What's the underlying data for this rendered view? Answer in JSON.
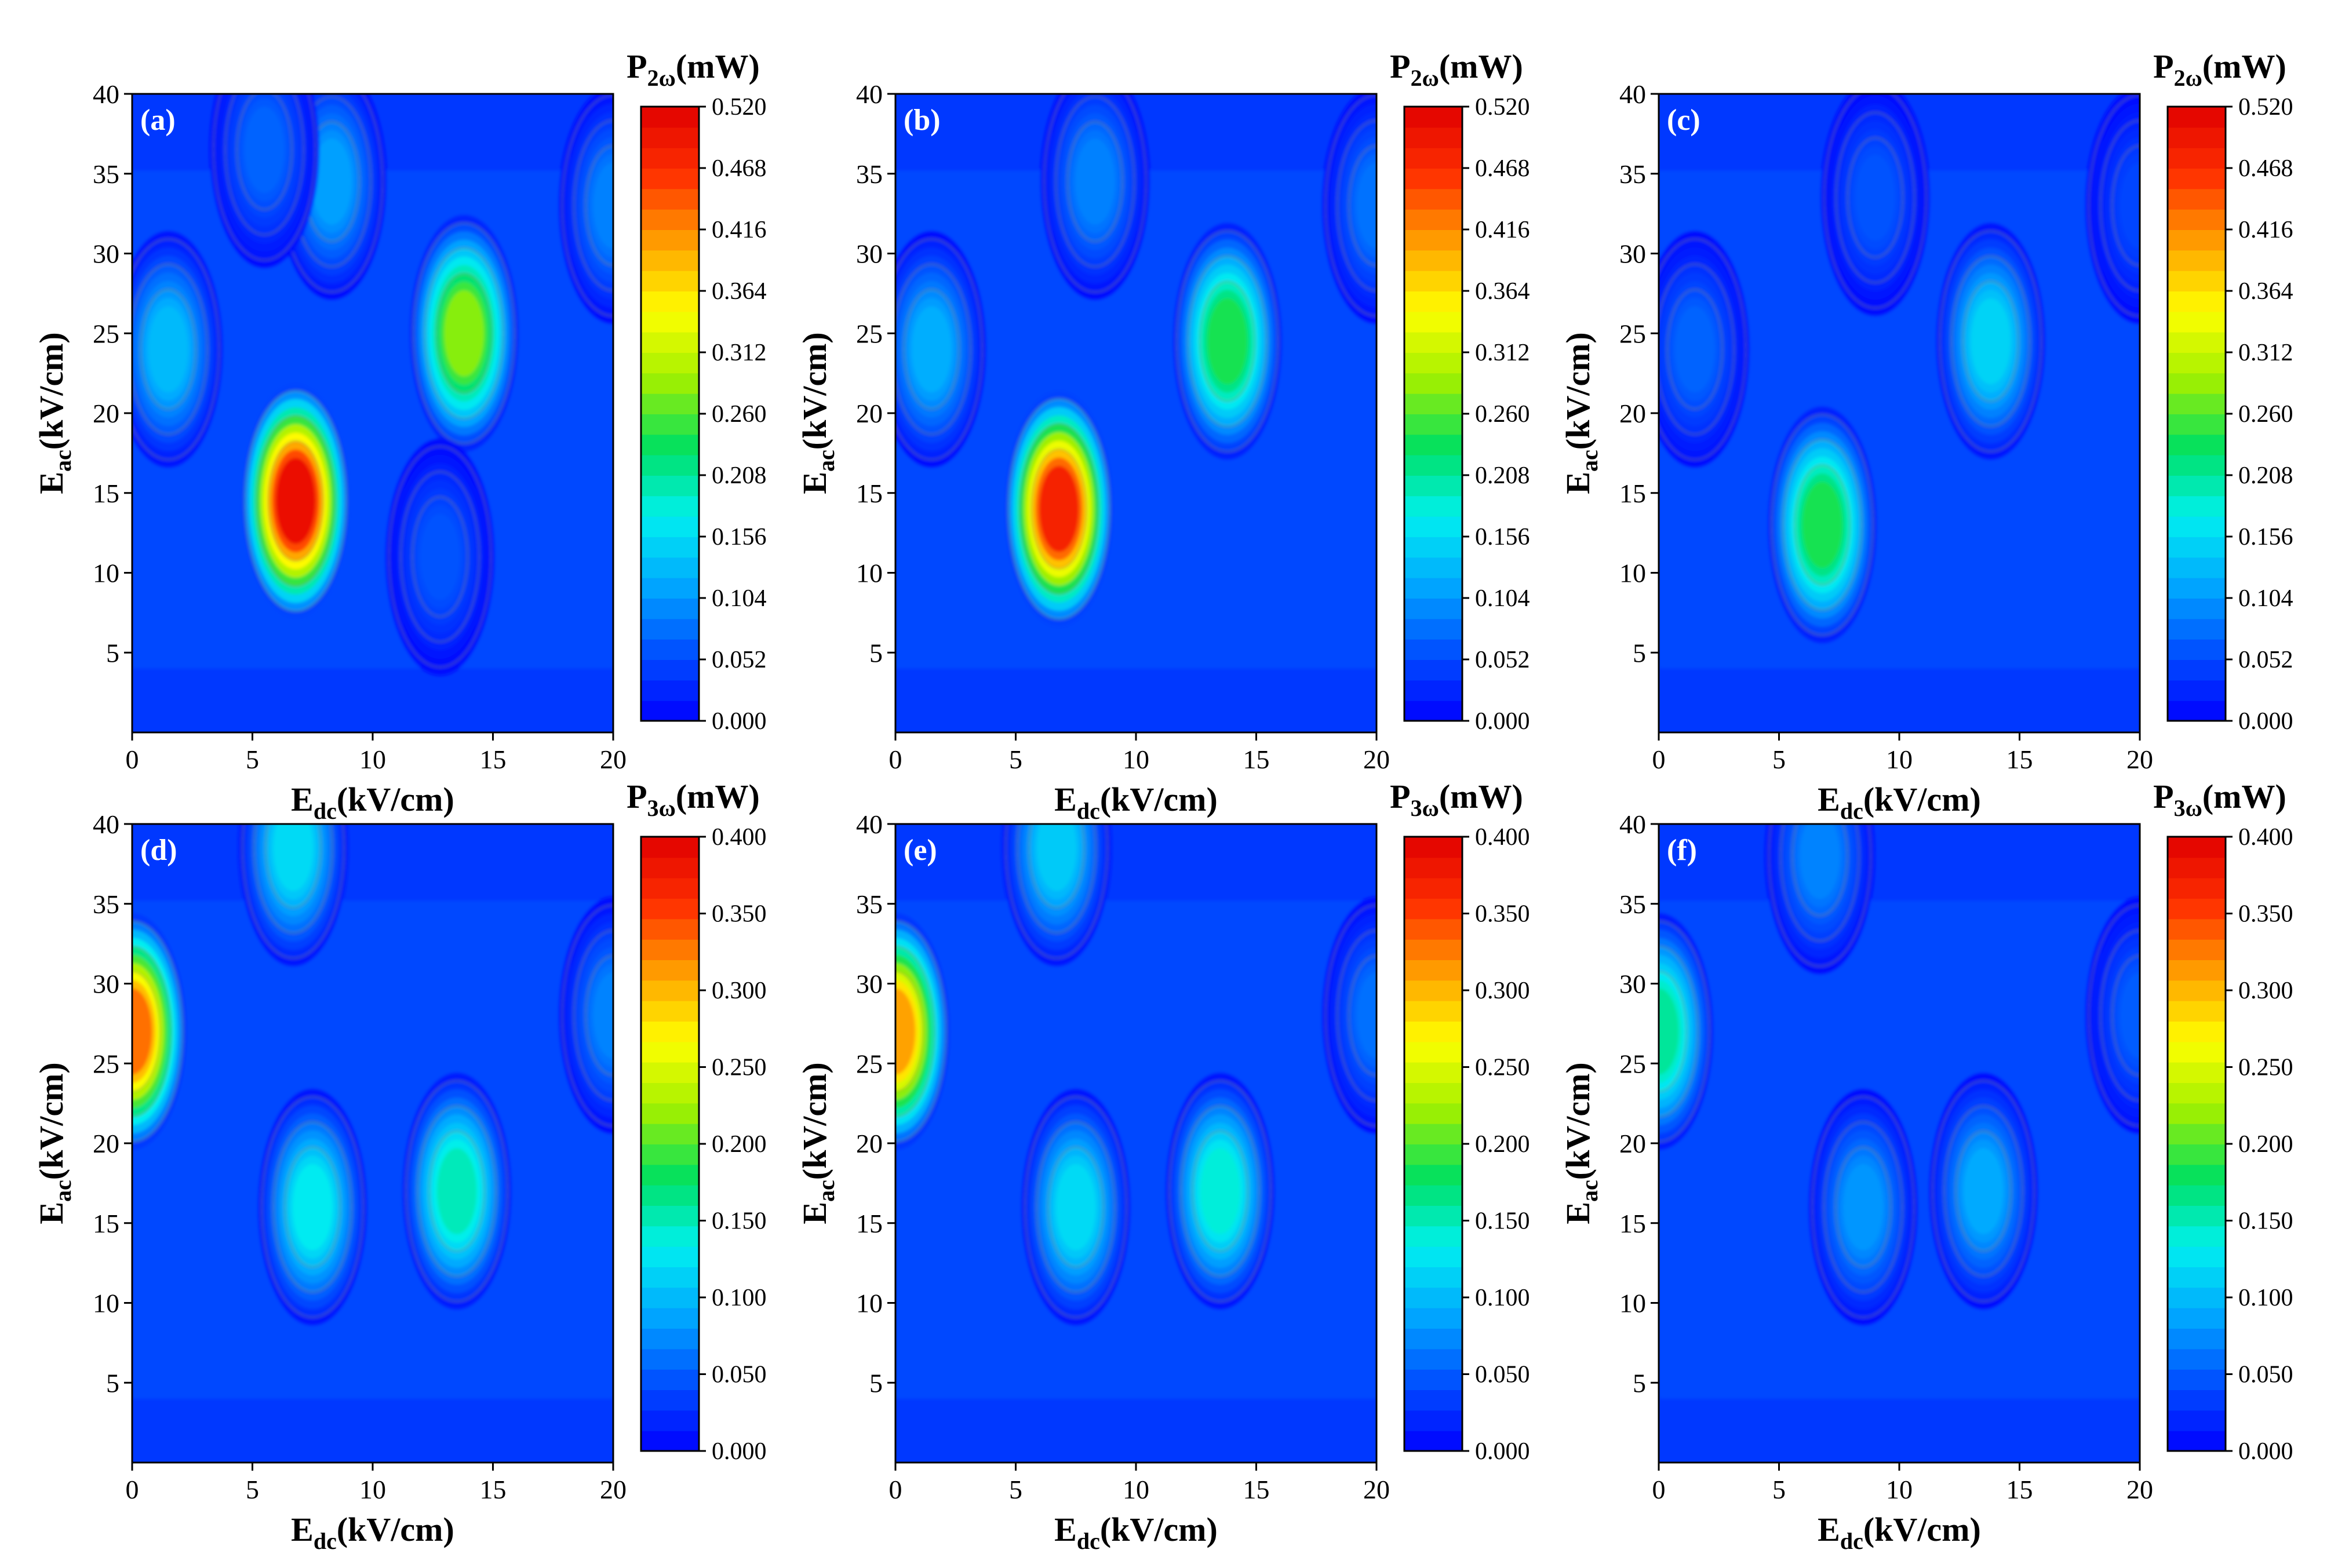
{
  "figure": {
    "description_axes": "6 contour maps (2 rows x 3 columns)",
    "colormap_stops": [
      "#0000ff",
      "#0050ff",
      "#00a8ff",
      "#00f0f0",
      "#00e060",
      "#a0f000",
      "#ffff00",
      "#ffa000",
      "#ff3000",
      "#e00000"
    ]
  },
  "chart_data": [
    {
      "type": "heatmap",
      "panel_label": "(a)",
      "xlabel_main": "E",
      "xlabel_sub": "dc",
      "xlabel_unit": "(kV/cm)",
      "ylabel_main": "E",
      "ylabel_sub": "ac",
      "ylabel_unit": "(kV/cm)",
      "xlim": [
        0,
        20
      ],
      "ylim": [
        0,
        40
      ],
      "xticks": [
        "0",
        "5",
        "10",
        "15",
        "20"
      ],
      "yticks": [
        "5",
        "10",
        "15",
        "20",
        "25",
        "30",
        "35",
        "40"
      ],
      "colorbar": {
        "title_main": "P",
        "title_sub": "2ω",
        "title_unit": "(mW)",
        "range": [
          0,
          0.52
        ],
        "ticks": [
          "0.000",
          "0.052",
          "0.104",
          "0.156",
          "0.208",
          "0.260",
          "0.312",
          "0.364",
          "0.416",
          "0.468",
          "0.520"
        ]
      },
      "peaks": [
        {
          "x": 6.8,
          "y": 14.5,
          "value": 0.5
        },
        {
          "x": 13.8,
          "y": 25.0,
          "value": 0.28
        },
        {
          "x": 1.5,
          "y": 24.0,
          "value": 0.13
        },
        {
          "x": 8.3,
          "y": 34.5,
          "value": 0.11
        },
        {
          "x": 5.5,
          "y": 36.5,
          "value": 0.07
        },
        {
          "x": 20.0,
          "y": 33.0,
          "value": 0.09
        },
        {
          "x": 12.8,
          "y": 11.0,
          "value": 0.06
        }
      ]
    },
    {
      "type": "heatmap",
      "panel_label": "(b)",
      "xlabel_main": "E",
      "xlabel_sub": "dc",
      "xlabel_unit": "(kV/cm)",
      "ylabel_main": "E",
      "ylabel_sub": "ac",
      "ylabel_unit": "(kV/cm)",
      "xlim": [
        0,
        20
      ],
      "ylim": [
        0,
        40
      ],
      "xticks": [
        "0",
        "5",
        "10",
        "15",
        "20"
      ],
      "yticks": [
        "5",
        "10",
        "15",
        "20",
        "25",
        "30",
        "35",
        "40"
      ],
      "colorbar": {
        "title_main": "P",
        "title_sub": "2ω",
        "title_unit": "(mW)",
        "range": [
          0,
          0.52
        ],
        "ticks": [
          "0.000",
          "0.052",
          "0.104",
          "0.156",
          "0.208",
          "0.260",
          "0.312",
          "0.364",
          "0.416",
          "0.468",
          "0.520"
        ]
      },
      "peaks": [
        {
          "x": 6.8,
          "y": 14.0,
          "value": 0.48
        },
        {
          "x": 13.8,
          "y": 24.5,
          "value": 0.24
        },
        {
          "x": 1.5,
          "y": 24.0,
          "value": 0.12
        },
        {
          "x": 8.3,
          "y": 34.5,
          "value": 0.09
        },
        {
          "x": 20.0,
          "y": 33.0,
          "value": 0.08
        }
      ]
    },
    {
      "type": "heatmap",
      "panel_label": "(c)",
      "xlabel_main": "E",
      "xlabel_sub": "dc",
      "xlabel_unit": "(kV/cm)",
      "ylabel_main": "E",
      "ylabel_sub": "ac",
      "ylabel_unit": "(kV/cm)",
      "xlim": [
        0,
        20
      ],
      "ylim": [
        0,
        40
      ],
      "xticks": [
        "0",
        "5",
        "10",
        "15",
        "20"
      ],
      "yticks": [
        "5",
        "10",
        "15",
        "20",
        "25",
        "30",
        "35",
        "40"
      ],
      "colorbar": {
        "title_main": "P",
        "title_sub": "2ω",
        "title_unit": "(mW)",
        "range": [
          0,
          0.52
        ],
        "ticks": [
          "0.000",
          "0.052",
          "0.104",
          "0.156",
          "0.208",
          "0.260",
          "0.312",
          "0.364",
          "0.416",
          "0.468",
          "0.520"
        ]
      },
      "peaks": [
        {
          "x": 6.8,
          "y": 13.0,
          "value": 0.24
        },
        {
          "x": 13.8,
          "y": 24.5,
          "value": 0.15
        },
        {
          "x": 1.5,
          "y": 24.0,
          "value": 0.07
        },
        {
          "x": 9.0,
          "y": 33.5,
          "value": 0.06
        },
        {
          "x": 20.0,
          "y": 33.0,
          "value": 0.05
        }
      ]
    },
    {
      "type": "heatmap",
      "panel_label": "(d)",
      "xlabel_main": "E",
      "xlabel_sub": "dc",
      "xlabel_unit": "(kV/cm)",
      "ylabel_main": "E",
      "ylabel_sub": "ac",
      "ylabel_unit": "(kV/cm)",
      "xlim": [
        0,
        20
      ],
      "ylim": [
        0,
        40
      ],
      "xticks": [
        "0",
        "5",
        "10",
        "15",
        "20"
      ],
      "yticks": [
        "5",
        "10",
        "15",
        "20",
        "25",
        "30",
        "35",
        "40"
      ],
      "colorbar": {
        "title_main": "P",
        "title_sub": "3ω",
        "title_unit": "(mW)",
        "range": [
          0,
          0.4
        ],
        "ticks": [
          "0.000",
          "0.050",
          "0.100",
          "0.150",
          "0.200",
          "0.250",
          "0.300",
          "0.350",
          "0.400"
        ]
      },
      "peaks": [
        {
          "x": 0.0,
          "y": 27.0,
          "value": 0.33
        },
        {
          "x": 7.5,
          "y": 16.0,
          "value": 0.13
        },
        {
          "x": 13.5,
          "y": 17.0,
          "value": 0.15
        },
        {
          "x": 6.7,
          "y": 38.5,
          "value": 0.12
        },
        {
          "x": 20.0,
          "y": 28.0,
          "value": 0.07
        }
      ]
    },
    {
      "type": "heatmap",
      "panel_label": "(e)",
      "xlabel_main": "E",
      "xlabel_sub": "dc",
      "xlabel_unit": "(kV/cm)",
      "ylabel_main": "E",
      "ylabel_sub": "ac",
      "ylabel_unit": "(kV/cm)",
      "xlim": [
        0,
        20
      ],
      "ylim": [
        0,
        40
      ],
      "xticks": [
        "0",
        "5",
        "10",
        "15",
        "20"
      ],
      "yticks": [
        "5",
        "10",
        "15",
        "20",
        "25",
        "30",
        "35",
        "40"
      ],
      "colorbar": {
        "title_main": "P",
        "title_sub": "3ω",
        "title_unit": "(mW)",
        "range": [
          0,
          0.4
        ],
        "ticks": [
          "0.000",
          "0.050",
          "0.100",
          "0.150",
          "0.200",
          "0.250",
          "0.300",
          "0.350",
          "0.400"
        ]
      },
      "peaks": [
        {
          "x": 0.0,
          "y": 27.0,
          "value": 0.31
        },
        {
          "x": 7.5,
          "y": 16.0,
          "value": 0.12
        },
        {
          "x": 13.5,
          "y": 17.0,
          "value": 0.14
        },
        {
          "x": 6.7,
          "y": 38.5,
          "value": 0.11
        },
        {
          "x": 20.0,
          "y": 28.0,
          "value": 0.06
        }
      ]
    },
    {
      "type": "heatmap",
      "panel_label": "(f)",
      "xlabel_main": "E",
      "xlabel_sub": "dc",
      "xlabel_unit": "(kV/cm)",
      "ylabel_main": "E",
      "ylabel_sub": "ac",
      "ylabel_unit": "(kV/cm)",
      "xlim": [
        0,
        20
      ],
      "ylim": [
        0,
        40
      ],
      "xticks": [
        "0",
        "5",
        "10",
        "15",
        "20"
      ],
      "yticks": [
        "5",
        "10",
        "15",
        "20",
        "25",
        "30",
        "35",
        "40"
      ],
      "colorbar": {
        "title_main": "P",
        "title_sub": "3ω",
        "title_unit": "(mW)",
        "range": [
          0,
          0.4
        ],
        "ticks": [
          "0.000",
          "0.050",
          "0.100",
          "0.150",
          "0.200",
          "0.250",
          "0.300",
          "0.350",
          "0.400"
        ]
      },
      "peaks": [
        {
          "x": 0.0,
          "y": 27.0,
          "value": 0.16
        },
        {
          "x": 8.5,
          "y": 16.0,
          "value": 0.08
        },
        {
          "x": 13.5,
          "y": 17.0,
          "value": 0.09
        },
        {
          "x": 6.7,
          "y": 38.0,
          "value": 0.07
        },
        {
          "x": 20.0,
          "y": 28.0,
          "value": 0.05
        }
      ]
    }
  ]
}
